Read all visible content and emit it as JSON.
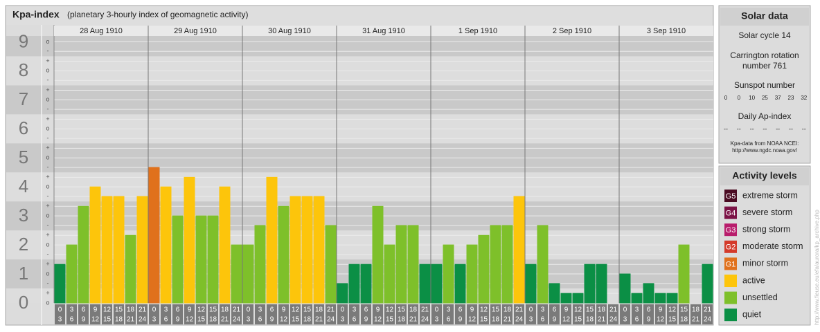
{
  "chart_data": {
    "type": "bar",
    "title": "Kpa-index",
    "subtitle": "(planetary 3-hourly index of geomagnetic activity)",
    "days": [
      "28 Aug 1910",
      "29 Aug 1910",
      "30 Aug 1910",
      "31 Aug 1910",
      "1 Sep 1910",
      "2 Sep 1910",
      "3 Sep 1910"
    ],
    "intervals": [
      {
        "start": 0,
        "end": 3
      },
      {
        "start": 3,
        "end": 6
      },
      {
        "start": 6,
        "end": 9
      },
      {
        "start": 9,
        "end": 12
      },
      {
        "start": 12,
        "end": 15
      },
      {
        "start": 15,
        "end": 18
      },
      {
        "start": 18,
        "end": 21
      },
      {
        "start": 21,
        "end": 24
      }
    ],
    "values": [
      1.33,
      2,
      3.33,
      4,
      3.67,
      3.67,
      2.33,
      3.67,
      4.67,
      4,
      3,
      4.33,
      3,
      3,
      4,
      2,
      2,
      2.67,
      4.33,
      3.33,
      3.67,
      3.67,
      3.67,
      2.67,
      0.67,
      1.33,
      1.33,
      3.33,
      2,
      2.67,
      2.67,
      1.33,
      1.33,
      2,
      1.33,
      2,
      2.33,
      2.67,
      2.67,
      3.67,
      1.33,
      2.67,
      0.67,
      0.33,
      0.33,
      1.33,
      1.33,
      0,
      1,
      0.33,
      0.67,
      0.33,
      0.33,
      2,
      0,
      1.33
    ],
    "colors": [
      "#0b8f45",
      "#7ec02a",
      "#7ec02a",
      "#fdc50b",
      "#fdc50b",
      "#fdc50b",
      "#7ec02a",
      "#fdc50b",
      "#e0711c",
      "#fdc50b",
      "#7ec02a",
      "#fdc50b",
      "#7ec02a",
      "#7ec02a",
      "#fdc50b",
      "#7ec02a",
      "#7ec02a",
      "#7ec02a",
      "#fdc50b",
      "#7ec02a",
      "#fdc50b",
      "#fdc50b",
      "#fdc50b",
      "#7ec02a",
      "#0b8f45",
      "#0b8f45",
      "#0b8f45",
      "#7ec02a",
      "#7ec02a",
      "#7ec02a",
      "#7ec02a",
      "#0b8f45",
      "#0b8f45",
      "#7ec02a",
      "#0b8f45",
      "#7ec02a",
      "#7ec02a",
      "#7ec02a",
      "#7ec02a",
      "#fdc50b",
      "#0b8f45",
      "#7ec02a",
      "#0b8f45",
      "#0b8f45",
      "#0b8f45",
      "#0b8f45",
      "#0b8f45",
      "#0b8f45",
      "#0b8f45",
      "#0b8f45",
      "#0b8f45",
      "#0b8f45",
      "#0b8f45",
      "#7ec02a",
      "#0b8f45",
      "#0b8f45"
    ],
    "ylim": [
      0,
      9.2
    ],
    "yticks": [
      0,
      1,
      2,
      3,
      4,
      5,
      6,
      7,
      8,
      9
    ],
    "minor_ticks": [
      {
        "value": 0,
        "label": "o"
      },
      {
        "value": 0.33,
        "label": "+"
      },
      {
        "value": 0.67,
        "label": "-"
      },
      {
        "value": 1,
        "label": "o"
      },
      {
        "value": 1.33,
        "label": "+"
      },
      {
        "value": 1.67,
        "label": "-"
      },
      {
        "value": 2,
        "label": "o"
      },
      {
        "value": 2.33,
        "label": "+"
      },
      {
        "value": 2.67,
        "label": "-"
      },
      {
        "value": 3,
        "label": "o"
      },
      {
        "value": 3.33,
        "label": "+"
      },
      {
        "value": 3.67,
        "label": "-"
      },
      {
        "value": 4,
        "label": "o"
      },
      {
        "value": 4.33,
        "label": "+"
      },
      {
        "value": 4.67,
        "label": "-"
      },
      {
        "value": 5,
        "label": "o"
      },
      {
        "value": 5.33,
        "label": "+"
      },
      {
        "value": 5.67,
        "label": "-"
      },
      {
        "value": 6,
        "label": "o"
      },
      {
        "value": 6.33,
        "label": "+"
      },
      {
        "value": 6.67,
        "label": "-"
      },
      {
        "value": 7,
        "label": "o"
      },
      {
        "value": 7.33,
        "label": "+"
      },
      {
        "value": 7.67,
        "label": "-"
      },
      {
        "value": 8,
        "label": "o"
      },
      {
        "value": 8.33,
        "label": "+"
      },
      {
        "value": 8.67,
        "label": "-"
      },
      {
        "value": 9,
        "label": "o"
      }
    ]
  },
  "solar_data": {
    "title": "Solar data",
    "cycle": "Solar cycle 14",
    "rotation": [
      "Carrington rotation",
      "number 761"
    ],
    "sunspot_label": "Sunspot number",
    "sunspot_numbers": [
      0,
      0,
      10,
      25,
      37,
      23,
      32
    ],
    "ap_label": "Daily Ap-index",
    "ap_values": [
      "--",
      "--",
      "--",
      "--",
      "--",
      "--",
      "--"
    ],
    "source": [
      "Kpa-data from NOAA NCEI:",
      "http://www.ngdc.noaa.gov/"
    ]
  },
  "activity_levels": {
    "title": "Activity levels",
    "items": [
      {
        "badge": "G5",
        "label": "extreme storm",
        "color": "#4a0b22"
      },
      {
        "badge": "G4",
        "label": "severe storm",
        "color": "#7b1245"
      },
      {
        "badge": "G3",
        "label": "strong storm",
        "color": "#b81d6c"
      },
      {
        "badge": "G2",
        "label": "moderate storm",
        "color": "#d43a2a"
      },
      {
        "badge": "G1",
        "label": "minor storm",
        "color": "#e0711c"
      },
      {
        "label": "active",
        "color": "#fdc50b"
      },
      {
        "label": "unsettled",
        "color": "#7ec02a"
      },
      {
        "label": "quiet",
        "color": "#0b8f45"
      }
    ]
  },
  "credit": "http://www.fieuse.eu/efa/aurora/kp_archive.php"
}
